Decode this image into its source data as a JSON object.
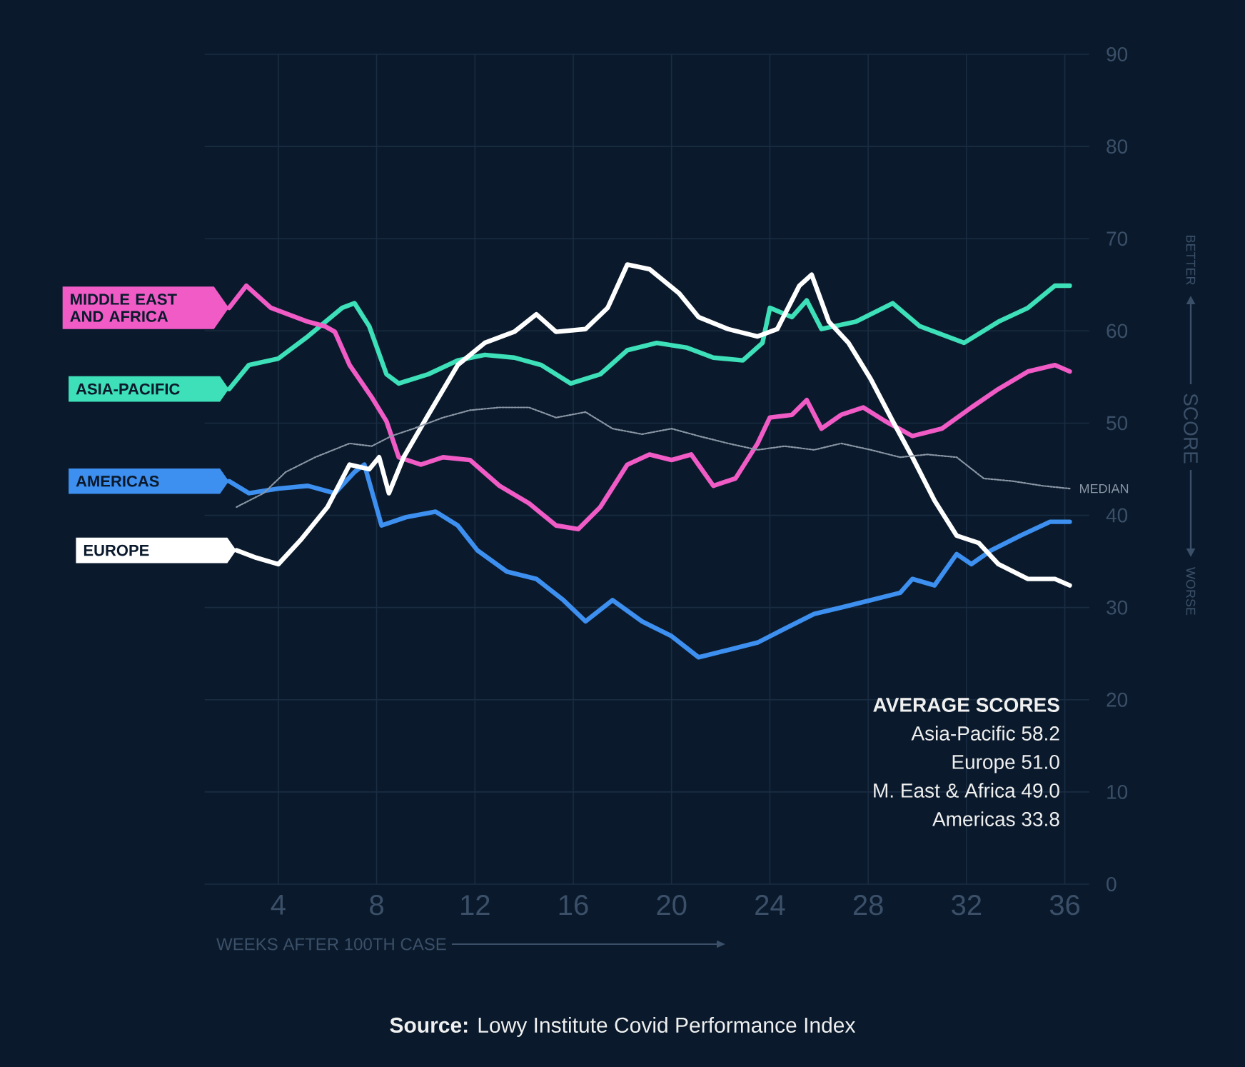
{
  "chart_data": {
    "type": "line",
    "ylabel": "SCORE",
    "xlabel": "WEEKS AFTER 100TH CASE",
    "xlim": [
      1,
      37
    ],
    "ylim": [
      0,
      90
    ],
    "xticks": [
      4,
      8,
      12,
      16,
      20,
      24,
      28,
      32,
      36
    ],
    "yticks": [
      0,
      10,
      20,
      30,
      40,
      50,
      60,
      70,
      80,
      90
    ],
    "grid": true,
    "line_style": "solid",
    "series": [
      {
        "name": "ASIA-PACIFIC",
        "color": "#3de0b8",
        "x": [
          2.0,
          2.8,
          4.0,
          5.2,
          6.6,
          7.1,
          7.7,
          8.4,
          8.9,
          10.1,
          11.3,
          12.4,
          13.6,
          14.7,
          15.9,
          17.1,
          18.2,
          19.4,
          20.6,
          21.7,
          22.9,
          23.7,
          24.0,
          24.9,
          25.5,
          26.1,
          27.5,
          29.0,
          30.1,
          31.9,
          33.3,
          34.5,
          35.6,
          36.2
        ],
        "values": [
          53.7,
          56.3,
          57.0,
          59.4,
          62.5,
          63.0,
          60.5,
          55.3,
          54.3,
          55.3,
          56.8,
          57.4,
          57.1,
          56.3,
          54.3,
          55.3,
          57.9,
          58.7,
          58.2,
          57.1,
          56.8,
          58.7,
          62.5,
          61.5,
          63.3,
          60.2,
          61.0,
          63.0,
          60.5,
          58.7,
          61.0,
          62.5,
          64.9,
          64.9
        ]
      },
      {
        "name": "MIDDLE EAST AND AFRICA",
        "color": "#f05bc6",
        "x": [
          2.0,
          2.7,
          3.7,
          5.2,
          5.9,
          6.3,
          6.9,
          7.8,
          8.4,
          8.9,
          9.8,
          10.7,
          11.8,
          13.0,
          14.2,
          15.3,
          16.2,
          17.1,
          18.2,
          19.1,
          20.0,
          20.8,
          21.7,
          22.6,
          23.5,
          24.0,
          24.9,
          25.5,
          26.1,
          26.9,
          27.8,
          28.7,
          29.8,
          31.0,
          32.2,
          33.3,
          34.5,
          35.6,
          36.2
        ],
        "values": [
          62.5,
          64.9,
          62.5,
          61.0,
          60.5,
          59.9,
          56.3,
          52.8,
          50.2,
          46.3,
          45.5,
          46.3,
          46.0,
          43.2,
          41.3,
          38.9,
          38.5,
          40.9,
          45.5,
          46.6,
          46.0,
          46.6,
          43.2,
          44.0,
          47.8,
          50.6,
          50.9,
          52.5,
          49.4,
          50.9,
          51.7,
          50.2,
          48.6,
          49.4,
          51.7,
          53.7,
          55.6,
          56.3,
          55.6
        ]
      },
      {
        "name": "AMERICAS",
        "color": "#3d8ff0",
        "x": [
          2.0,
          2.8,
          4.0,
          5.2,
          6.3,
          7.1,
          7.5,
          8.2,
          9.2,
          10.4,
          11.3,
          12.1,
          13.3,
          14.5,
          15.6,
          16.5,
          17.6,
          18.8,
          20.0,
          21.1,
          22.3,
          23.5,
          24.6,
          25.8,
          26.9,
          28.1,
          29.3,
          29.8,
          30.7,
          31.6,
          32.2,
          33.0,
          34.2,
          35.4,
          36.2
        ],
        "values": [
          43.7,
          42.4,
          42.9,
          43.2,
          42.4,
          44.7,
          45.5,
          38.9,
          39.8,
          40.4,
          38.9,
          36.2,
          33.9,
          33.1,
          30.8,
          28.5,
          30.8,
          28.5,
          26.9,
          24.6,
          25.4,
          26.2,
          27.7,
          29.3,
          30.0,
          30.8,
          31.6,
          33.1,
          32.4,
          35.8,
          34.7,
          36.2,
          37.8,
          39.3,
          39.3
        ]
      },
      {
        "name": "EUROPE",
        "color": "#ffffff",
        "x": [
          2.3,
          3.1,
          4.0,
          4.9,
          6.0,
          6.9,
          7.7,
          8.1,
          8.5,
          9.1,
          10.1,
          11.3,
          12.4,
          13.6,
          14.5,
          15.3,
          16.5,
          17.4,
          18.2,
          19.1,
          20.3,
          21.1,
          22.3,
          23.5,
          24.3,
          25.2,
          25.7,
          26.4,
          27.2,
          28.1,
          29.0,
          29.8,
          30.7,
          31.6,
          32.5,
          33.3,
          34.5,
          35.6,
          36.2
        ],
        "values": [
          36.2,
          35.4,
          34.7,
          37.3,
          40.9,
          45.5,
          45.0,
          46.3,
          42.4,
          46.3,
          50.9,
          56.3,
          58.7,
          59.9,
          61.8,
          59.9,
          60.2,
          62.5,
          67.2,
          66.7,
          64.1,
          61.5,
          60.2,
          59.4,
          60.2,
          64.9,
          66.1,
          61.0,
          58.7,
          54.8,
          50.2,
          46.3,
          41.6,
          37.8,
          37.0,
          34.7,
          33.1,
          33.1,
          32.4
        ]
      },
      {
        "name": "MEDIAN",
        "color": "#8b97a6",
        "line_style": "dotted",
        "x": [
          2.3,
          3.4,
          4.3,
          5.5,
          6.9,
          7.8,
          8.6,
          9.5,
          10.7,
          11.8,
          13.0,
          14.2,
          15.3,
          16.5,
          17.6,
          18.8,
          20.0,
          21.1,
          22.3,
          23.5,
          24.6,
          25.8,
          26.9,
          28.1,
          29.3,
          30.4,
          31.6,
          32.7,
          33.9,
          35.1,
          36.2
        ],
        "values": [
          40.9,
          42.4,
          44.7,
          46.3,
          47.8,
          47.5,
          48.6,
          49.4,
          50.6,
          51.4,
          51.7,
          51.7,
          50.6,
          51.2,
          49.4,
          48.8,
          49.4,
          48.6,
          47.8,
          47.1,
          47.5,
          47.1,
          47.8,
          47.1,
          46.3,
          46.6,
          46.3,
          44.0,
          43.7,
          43.2,
          42.9
        ]
      }
    ],
    "annotations": [
      "BETTER",
      "WORSE",
      "AVERAGE SCORES",
      "Asia-Pacific 58.2",
      "Europe 51.0",
      "M. East & Africa 49.0",
      "Americas 33.8",
      "**Source:** Lowy Institute Covid Performance Index"
    ]
  }
}
